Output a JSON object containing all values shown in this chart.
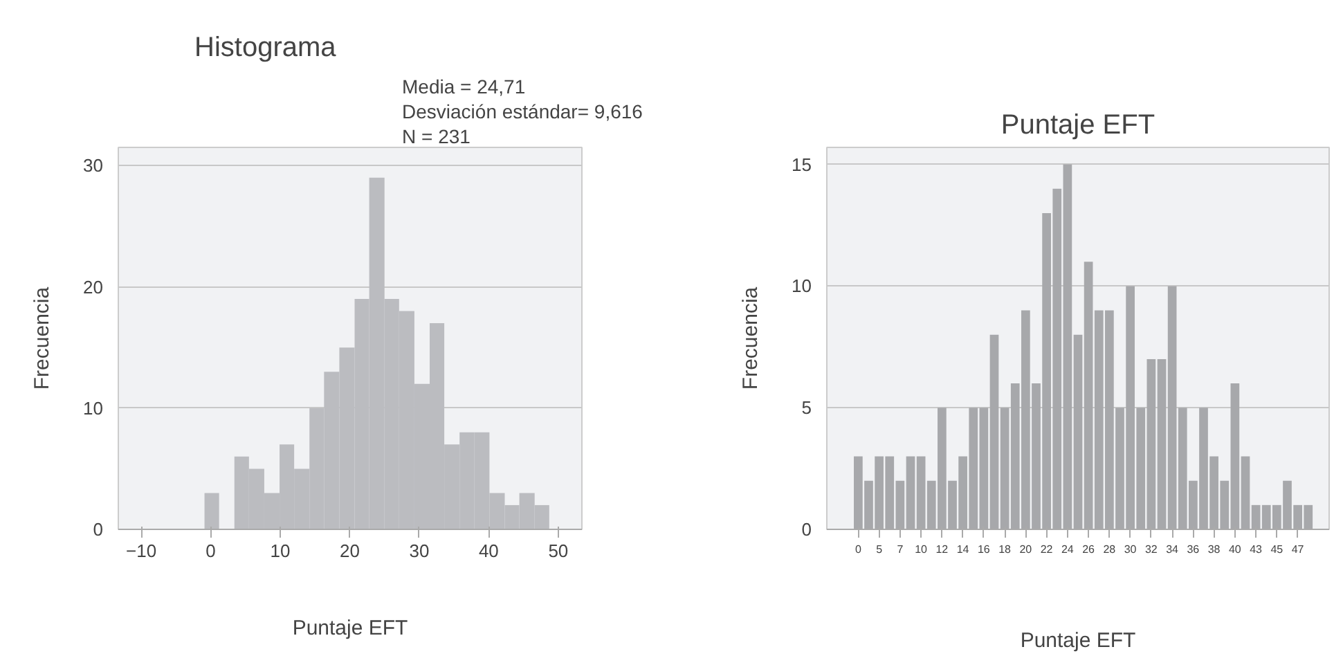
{
  "chart_data": [
    {
      "type": "histogram",
      "title": "Histograma",
      "annotations": [
        "Media = 24,71",
        "Desviación estándar= 9,616",
        "N = 231"
      ],
      "xlabel": "Puntaje EFT",
      "ylabel": "Frecuencia",
      "color": "#bbbcc0",
      "bins": [
        -0.9,
        1.2,
        3.4,
        5.5,
        7.7,
        9.9,
        12.0,
        14.2,
        16.3,
        18.5,
        20.7,
        22.8,
        25.0,
        27.1,
        29.3,
        31.5,
        33.6,
        35.8,
        37.9,
        40.1,
        42.3,
        44.4,
        46.6,
        48.7
      ],
      "values": [
        3,
        0,
        6,
        5,
        3,
        7,
        5,
        10,
        13,
        15,
        19,
        29,
        19,
        18,
        12,
        17,
        7,
        8,
        8,
        3,
        2,
        3,
        2
      ],
      "xlim": [
        -13.3,
        53.4
      ],
      "ylim": [
        0,
        31.5
      ],
      "xticks": [
        -10,
        0,
        10,
        20,
        30,
        40,
        50
      ],
      "yticks": [
        0,
        10,
        20,
        30
      ],
      "grid": "y"
    },
    {
      "type": "bar",
      "title": "Puntaje EFT",
      "xlabel": "Puntaje EFT",
      "ylabel": "Frecuencia",
      "color": "#a7a8ab",
      "categories": [
        "0",
        null,
        "5",
        null,
        "7",
        null,
        "10",
        null,
        "12",
        null,
        "14",
        null,
        "16",
        null,
        "18",
        null,
        "20",
        null,
        "22",
        null,
        "24",
        null,
        "26",
        null,
        "28",
        null,
        "30",
        null,
        "32",
        null,
        "34",
        null,
        "36",
        null,
        "38",
        null,
        "40",
        null,
        "43",
        null,
        "45",
        null,
        "47",
        null
      ],
      "values": [
        3,
        2,
        3,
        3,
        2,
        3,
        3,
        2,
        5,
        2,
        3,
        5,
        5,
        8,
        5,
        6,
        9,
        6,
        13,
        14,
        15,
        8,
        11,
        9,
        9,
        5,
        10,
        5,
        7,
        7,
        10,
        5,
        2,
        5,
        3,
        2,
        6,
        3,
        1,
        1,
        1,
        2,
        1,
        1
      ],
      "ylim": [
        0,
        15.7
      ],
      "yticks": [
        0,
        5,
        10,
        15
      ],
      "grid": "y"
    }
  ]
}
